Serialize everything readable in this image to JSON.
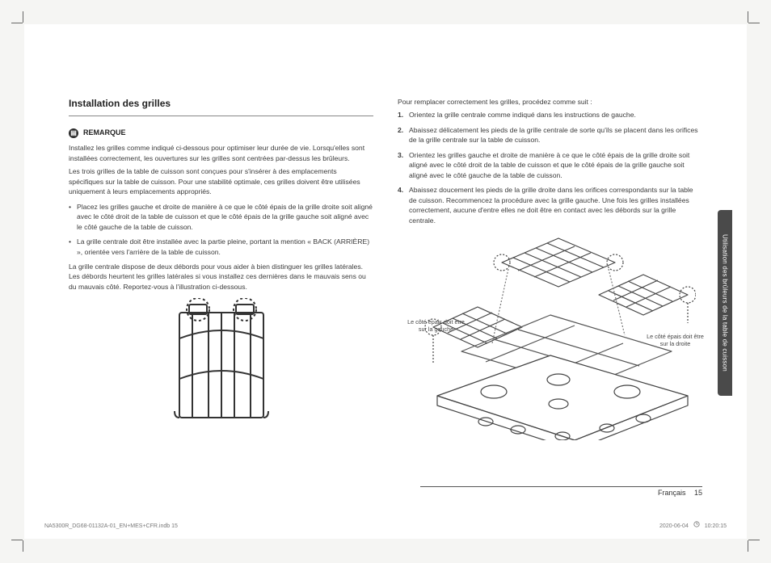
{
  "section_title": "Installation des grilles",
  "remarque": {
    "icon_glyph": "▤",
    "label": "REMARQUE",
    "intro": "Installez les grilles comme indiqué ci-dessous pour optimiser leur durée de vie. Lorsqu'elles sont installées correctement, les ouvertures sur les grilles sont centrées par-dessus les brûleurs.",
    "para2": "Les trois grilles de la table de cuisson sont conçues pour s'insérer à des emplacements spécifiques sur la table de cuisson. Pour une stabilité optimale, ces grilles doivent être utilisées uniquement à leurs emplacements appropriés.",
    "bullets": [
      "Placez les grilles gauche et droite de manière à ce que le côté épais de la grille droite soit aligné avec le côté droit de la table de cuisson et que le côté épais de la grille gauche soit aligné avec le côté gauche de la table de cuisson.",
      "La grille centrale doit être installée avec la partie pleine, portant la mention « BACK (ARRIÈRE) », orientée vers l'arrière de la table de cuisson."
    ],
    "after": "La grille centrale dispose de deux débords pour vous aider à bien distinguer les grilles latérales. Les débords heurtent les grilles latérales si vous installez ces dernières dans le mauvais sens ou du mauvais côté. Reportez-vous à l'illustration ci-dessous."
  },
  "right_intro": "Pour remplacer correctement les grilles, procédez comme suit :",
  "steps": [
    "Orientez la grille centrale comme indiqué dans les instructions de gauche.",
    "Abaissez délicatement les pieds de la grille centrale de sorte qu'ils se placent dans les orifices de la grille centrale sur la table de cuisson.",
    "Orientez les grilles gauche et droite de manière à ce que le côté épais de la grille droite soit aligné avec le côté droit de la table de cuisson et que le côté épais de la grille gauche soit aligné avec le côté gauche de la table de cuisson.",
    "Abaissez doucement les pieds de la grille droite dans les orifices correspondants sur la table de cuisson. Recommencez la procédure avec la grille gauche. Une fois les grilles installées correctement, aucune d'entre elles ne doit être en contact avec les débords sur la grille centrale."
  ],
  "callout_left": "Le côté épais doit être\nsur la gauche",
  "callout_right": "Le côté épais doit être\nsur la droite",
  "side_tab": "Utilisation des brûleurs de la table de cuisson",
  "footer": {
    "lang": "Français",
    "page": "15"
  },
  "imprint": {
    "left": "NA5300R_DG68-01132A-01_EN+MES+CFR.indb   15",
    "date": "2020-06-04",
    "time": "10:20:15"
  },
  "colors": {
    "page_bg": "#ffffff",
    "outer_bg": "#f5f5f3",
    "text": "#3a3a3a",
    "tab_bg": "#4a4a4a",
    "rule": "#555555"
  }
}
